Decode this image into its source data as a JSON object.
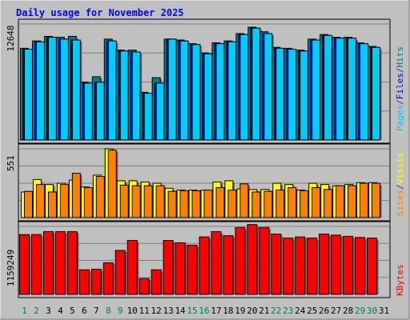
{
  "chart_data": [
    {
      "type": "bar",
      "title": "Daily usage for November 2025",
      "ylabel_top": "12648",
      "axis_label": {
        "parts": [
          "Pages",
          "/",
          "Files",
          "/",
          "Hits"
        ],
        "colors": [
          "#00ccff",
          "#333399",
          "#0000ff",
          "#333399",
          "#008080"
        ]
      },
      "ymax": 12648,
      "series": [
        {
          "name": "Hits",
          "color": "#008080",
          "values": [
            10000,
            10800,
            11300,
            11200,
            11300,
            6300,
            6900,
            11000,
            9800,
            9800,
            5200,
            6800,
            11000,
            10900,
            10500,
            9500,
            10600,
            10800,
            11600,
            12300,
            11800,
            10100,
            10000,
            9800,
            11000,
            11500,
            11200,
            11200,
            10600,
            10200
          ]
        },
        {
          "name": "Files",
          "color": "#0000ff",
          "values": [
            9900,
            10700,
            11200,
            11000,
            10900,
            6200,
            6300,
            10800,
            9700,
            9600,
            5100,
            6200,
            11000,
            10800,
            10400,
            9400,
            10500,
            10700,
            11500,
            12200,
            11600,
            10000,
            9900,
            9700,
            10900,
            11400,
            11100,
            11100,
            10500,
            10100
          ]
        },
        {
          "name": "Pages",
          "color": "#00ccff",
          "values": [
            9900,
            10700,
            11200,
            11000,
            10900,
            6200,
            6300,
            10800,
            9700,
            9600,
            5100,
            6200,
            11000,
            10800,
            10400,
            9400,
            10500,
            10700,
            11500,
            12200,
            11600,
            10000,
            9900,
            9700,
            10900,
            11400,
            11100,
            11100,
            10500,
            10100
          ]
        }
      ]
    },
    {
      "type": "bar",
      "ylabel_top": "551",
      "axis_label": {
        "parts": [
          "Sites",
          "/",
          "Visits"
        ],
        "colors": [
          "#ff8000",
          "#333399",
          "#ffff00"
        ]
      },
      "ymax": 551,
      "series": [
        {
          "name": "Visits",
          "color": "#ffff00",
          "values": [
            205,
            305,
            265,
            275,
            300,
            245,
            340,
            551,
            295,
            295,
            285,
            275,
            235,
            220,
            220,
            220,
            285,
            295,
            230,
            225,
            225,
            275,
            265,
            220,
            275,
            265,
            255,
            265,
            280,
            280
          ]
        },
        {
          "name": "Sites",
          "color": "#ff8000",
          "values": [
            210,
            265,
            205,
            265,
            355,
            240,
            330,
            540,
            260,
            255,
            255,
            255,
            210,
            215,
            215,
            220,
            240,
            220,
            270,
            205,
            210,
            220,
            240,
            215,
            240,
            225,
            255,
            255,
            275,
            275
          ]
        }
      ]
    },
    {
      "type": "bar",
      "ylabel_top": "1159249",
      "axis_label": {
        "parts": [
          "KBytes"
        ],
        "colors": [
          "#ff0000"
        ]
      },
      "ymax": 1159249,
      "series": [
        {
          "name": "KBytes",
          "color": "#ff0000",
          "values": [
            1020000,
            1020000,
            1070000,
            1070000,
            1070000,
            420000,
            430000,
            540000,
            750000,
            920000,
            270000,
            420000,
            920000,
            880000,
            840000,
            980000,
            1070000,
            1000000,
            1140000,
            1190000,
            1140000,
            1030000,
            960000,
            980000,
            960000,
            1030000,
            1010000,
            990000,
            970000,
            960000
          ]
        }
      ]
    }
  ],
  "x_labels": [
    "1",
    "2",
    "3",
    "4",
    "5",
    "6",
    "7",
    "8",
    "9",
    "10",
    "11",
    "12",
    "13",
    "14",
    "15",
    "16",
    "17",
    "18",
    "19",
    "20",
    "21",
    "22",
    "23",
    "24",
    "25",
    "26",
    "27",
    "28",
    "29",
    "30",
    "31"
  ],
  "x_label_colors": [
    "#008040",
    "#008040",
    "#000000",
    "#000000",
    "#000000",
    "#000000",
    "#000000",
    "#008040",
    "#008040",
    "#000000",
    "#000000",
    "#000000",
    "#000000",
    "#000000",
    "#008040",
    "#008040",
    "#000000",
    "#000000",
    "#000000",
    "#000000",
    "#000000",
    "#008040",
    "#008040",
    "#000000",
    "#000000",
    "#000000",
    "#000000",
    "#000000",
    "#008040",
    "#008040",
    "#000000"
  ]
}
